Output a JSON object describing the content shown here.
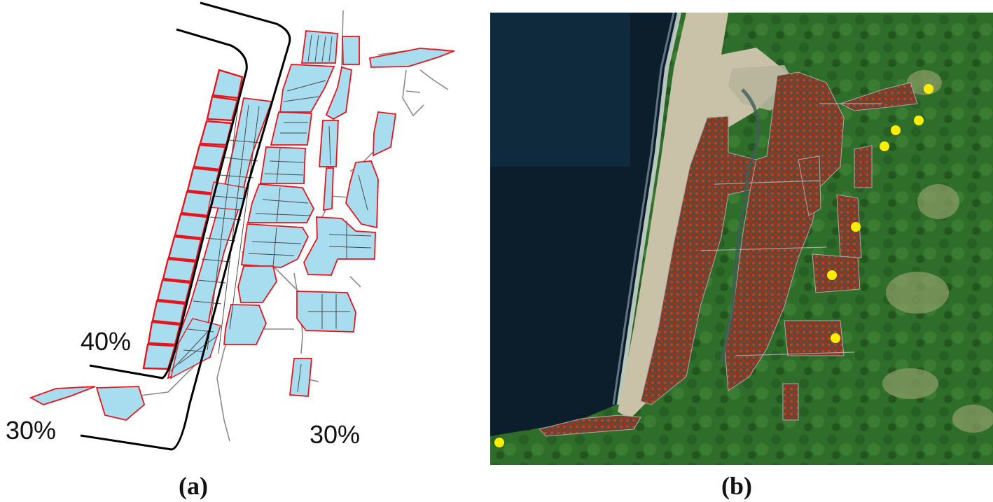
{
  "panel_a": {
    "labels": {
      "beach_front": "40%",
      "southwest": "30%",
      "east": "30%"
    },
    "colors": {
      "block_fill": "#a8dcef",
      "block_stroke": "#e8141b",
      "road": "#8a8a8a",
      "streets": "#4a4a4a",
      "boundary": "#000000"
    }
  },
  "panel_b": {
    "colors": {
      "ocean": "#0c1d2c",
      "land": "#2f6e2a",
      "sand": "#c9c2a8",
      "building_point": "#c0260f",
      "shelter_point": "#ffee00"
    },
    "shelter_count": 9
  },
  "captions": {
    "a": "(a)",
    "b": "(b)"
  }
}
